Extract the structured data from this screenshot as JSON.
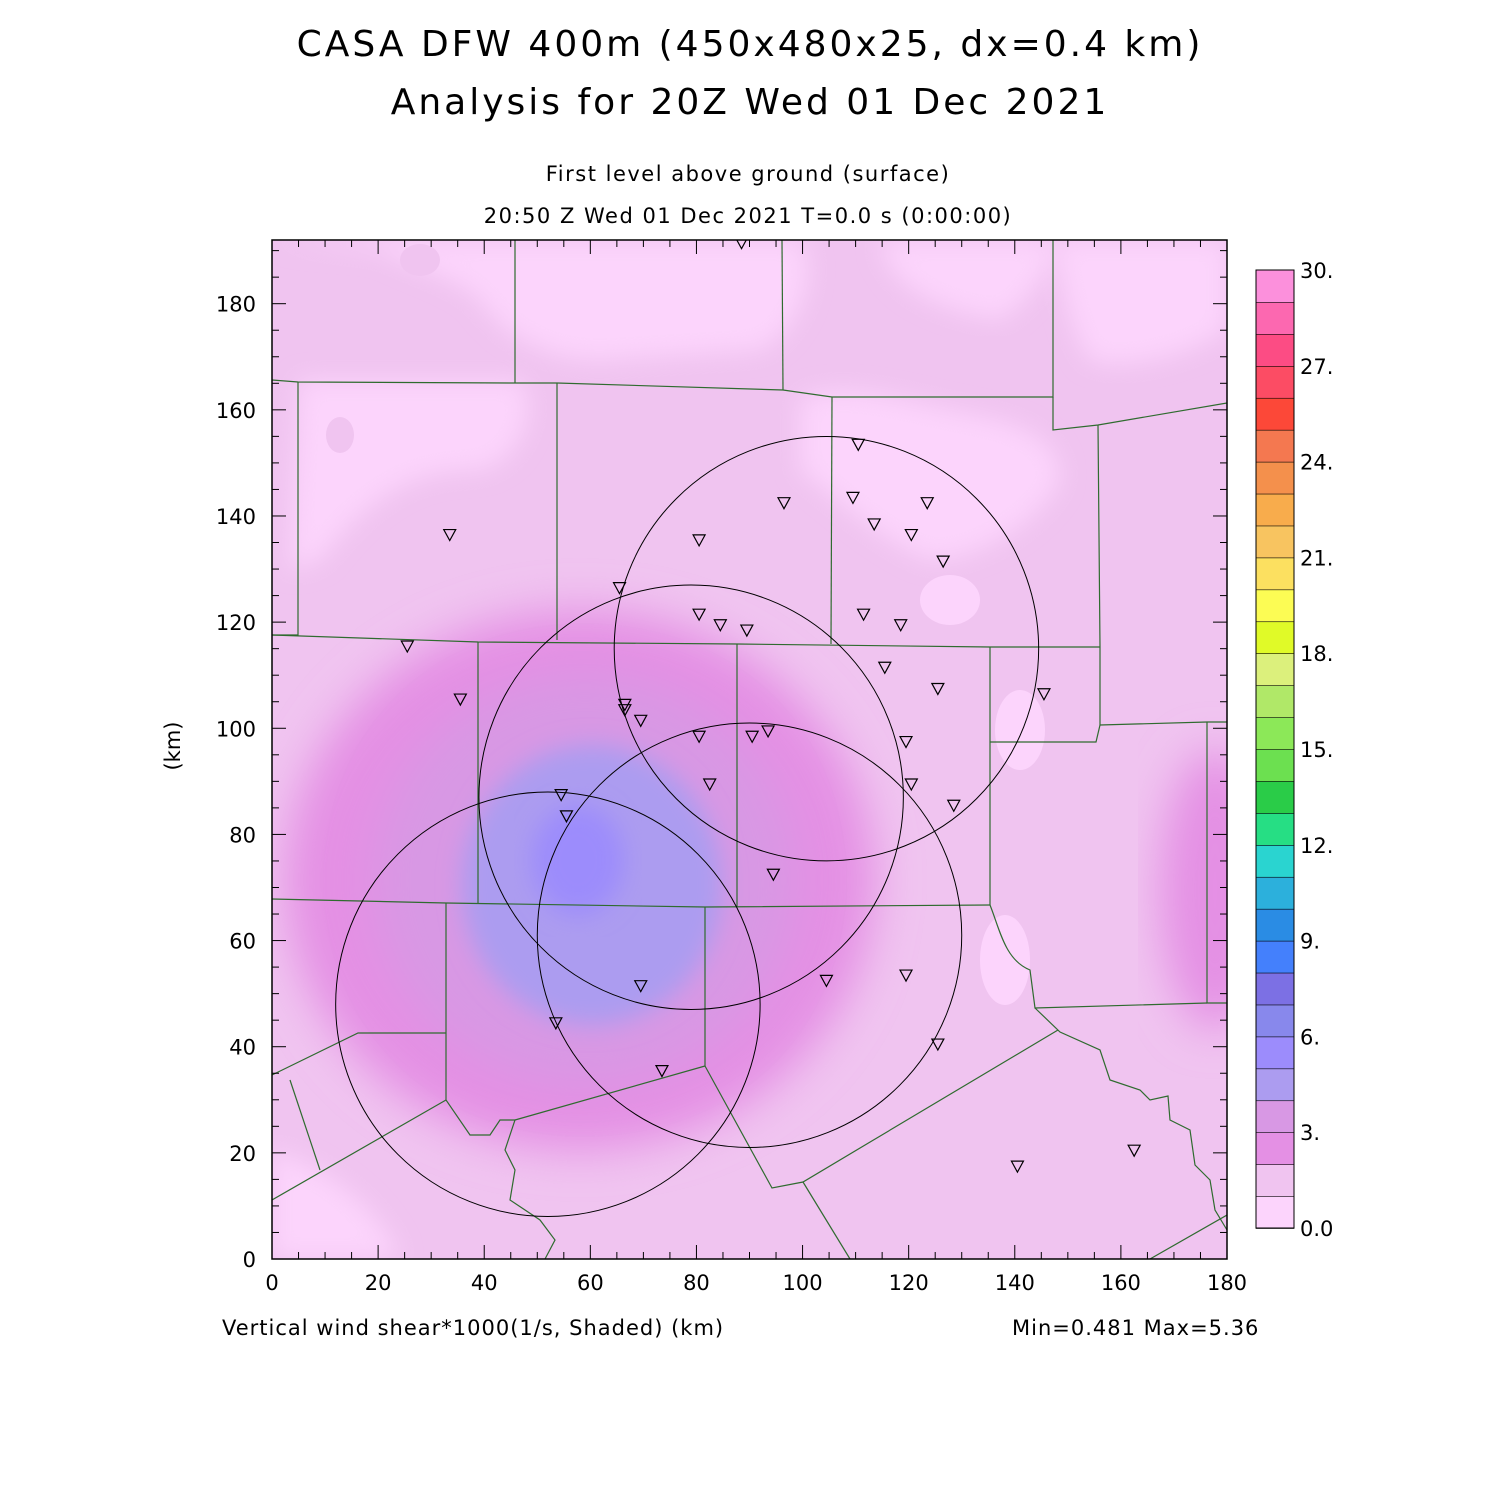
{
  "title": {
    "line1": "CASA DFW 400m (450x480x25, dx=0.4 km)",
    "line2": "Analysis for 20Z Wed 01 Dec 2021"
  },
  "subtitle": {
    "level": "First level above ground (surface)",
    "time": "20:50 Z Wed 01 Dec 2021    T=0.0 s (0:00:00)"
  },
  "footer": {
    "field": "Vertical wind shear*1000(1/s, Shaded)  (km)",
    "range": "Min=0.481 Max=5.36"
  },
  "axes": {
    "x_ticks": [
      "0",
      "20",
      "40",
      "60",
      "80",
      "100",
      "120",
      "140",
      "160",
      "180"
    ],
    "y_ticks": [
      "0",
      "20",
      "40",
      "60",
      "80",
      "100",
      "120",
      "140",
      "160",
      "180"
    ],
    "ylabel": "(km)",
    "xrange": [
      0,
      180
    ],
    "yrange": [
      0,
      192
    ]
  },
  "colorbar": {
    "labels": [
      "30.",
      "27.",
      "24.",
      "21.",
      "18.",
      "15.",
      "12.",
      "9.",
      "6.",
      "3.",
      "0.0"
    ],
    "colors": [
      "#fcd4fc",
      "#f0c4f0",
      "#e490e4",
      "#d898e4",
      "#ac9cf0",
      "#9c8cfc",
      "#8888ec",
      "#7c70e4",
      "#4480fc",
      "#2a8ce4",
      "#2cb0dc",
      "#2ad4d0",
      "#26de84",
      "#2acc48",
      "#6ce050",
      "#8ce858",
      "#b0e868",
      "#dcf07c",
      "#e0fa28",
      "#fcfc54",
      "#fce060",
      "#f8c460",
      "#f8ac4c",
      "#f4904c",
      "#f47850",
      "#fc4838",
      "#fc4c64",
      "#fc4c84",
      "#fc68b0",
      "#fc90dc"
    ],
    "min": 0,
    "max": 30
  },
  "markers_km": [
    [
      88.5,
      191.5
    ],
    [
      110.5,
      153.5
    ],
    [
      96.5,
      142.5
    ],
    [
      109.5,
      143.5
    ],
    [
      123.5,
      142.5
    ],
    [
      113.5,
      138.5
    ],
    [
      120.5,
      136.5
    ],
    [
      80.5,
      135.5
    ],
    [
      126.5,
      131.5
    ],
    [
      33.5,
      136.5
    ],
    [
      65.5,
      126.5
    ],
    [
      111.5,
      121.5
    ],
    [
      80.5,
      121.5
    ],
    [
      84.5,
      119.5
    ],
    [
      89.5,
      118.5
    ],
    [
      118.5,
      119.5
    ],
    [
      25.5,
      115.5
    ],
    [
      115.5,
      111.5
    ],
    [
      125.5,
      107.5
    ],
    [
      145.5,
      106.5
    ],
    [
      35.5,
      105.5
    ],
    [
      66.5,
      104.5
    ],
    [
      66.5,
      103.5
    ],
    [
      69.5,
      101.5
    ],
    [
      93.5,
      99.5
    ],
    [
      80.5,
      98.5
    ],
    [
      90.5,
      98.5
    ],
    [
      119.5,
      97.5
    ],
    [
      82.5,
      89.5
    ],
    [
      120.5,
      89.5
    ],
    [
      54.5,
      87.5
    ],
    [
      128.5,
      85.5
    ],
    [
      55.5,
      83.5
    ],
    [
      94.5,
      72.5
    ],
    [
      119.5,
      53.5
    ],
    [
      104.5,
      52.5
    ],
    [
      69.5,
      51.5
    ],
    [
      53.5,
      44.5
    ],
    [
      125.5,
      40.5
    ],
    [
      73.5,
      35.5
    ],
    [
      162.5,
      20.5
    ],
    [
      140.5,
      17.5
    ]
  ],
  "radar_circles_km": [
    [
      104.5,
      115,
      40
    ],
    [
      79,
      87,
      40
    ],
    [
      90,
      61,
      40
    ],
    [
      52,
      48,
      40
    ]
  ]
}
